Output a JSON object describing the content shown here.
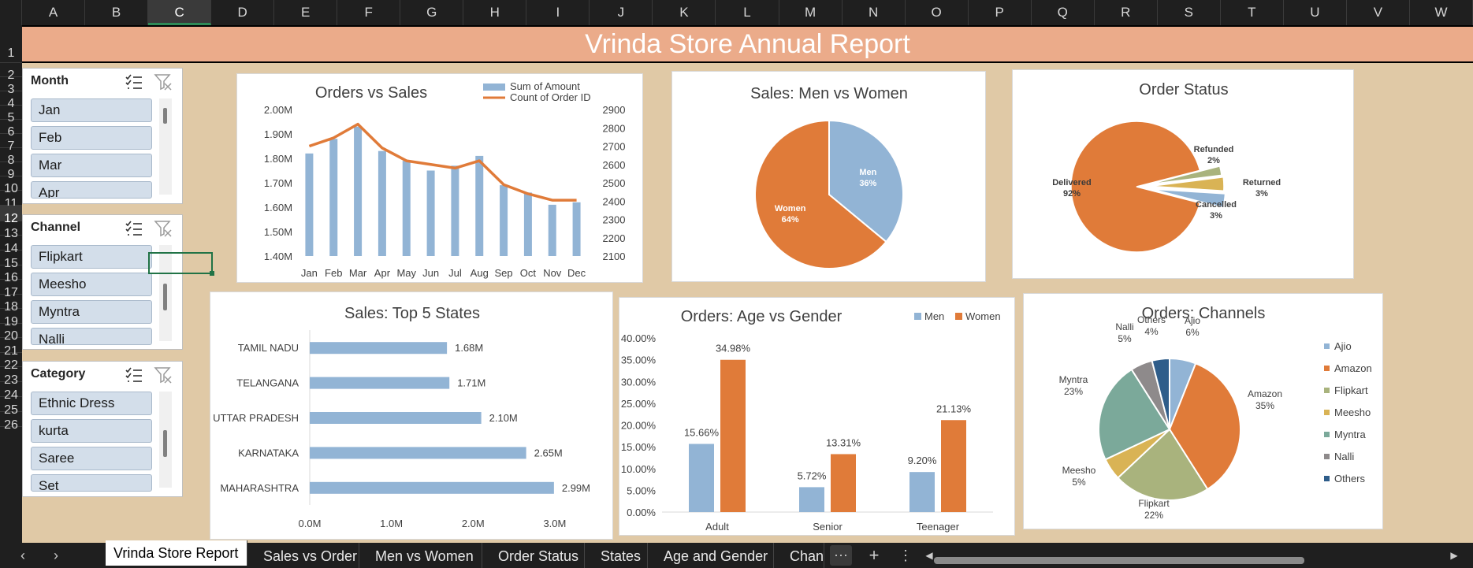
{
  "columns": [
    "A",
    "B",
    "C",
    "D",
    "E",
    "F",
    "G",
    "H",
    "I",
    "J",
    "K",
    "L",
    "M",
    "N",
    "O",
    "P",
    "Q",
    "R",
    "S",
    "T",
    "U",
    "V",
    "W"
  ],
  "selected_column": "C",
  "rows": [
    "1",
    "2",
    "3",
    "4",
    "5",
    "6",
    "7",
    "8",
    "9",
    "10",
    "11",
    "12",
    "13",
    "14",
    "15",
    "16",
    "17",
    "18",
    "19",
    "20",
    "21",
    "22",
    "23",
    "24",
    "25",
    "26"
  ],
  "selected_row": "12",
  "banner_title": "Vrinda Store Annual Report",
  "slicers": [
    {
      "title": "Month",
      "items": [
        "Jan",
        "Feb",
        "Mar",
        "Apr"
      ],
      "scroll_position": 0.05
    },
    {
      "title": "Channel",
      "items": [
        "Flipkart",
        "Meesho",
        "Myntra",
        "Nalli"
      ],
      "scroll_position": 0.35
    },
    {
      "title": "Category",
      "items": [
        "Ethnic Dress",
        "kurta",
        "Saree",
        "Set"
      ],
      "scroll_position": 0.35
    }
  ],
  "icons": {
    "multi_select": "multi-select-icon",
    "clear_filter": "clear-filter-icon",
    "more": "ellipsis-icon",
    "add": "plus-icon",
    "menu": "vertical-ellipsis-icon"
  },
  "colors": {
    "blue": "#92B4D5",
    "orange": "#E07B39",
    "banner": "#EBAB8A",
    "background": "#E0C9A6",
    "olive": "#A9B37D",
    "gold": "#D9B355",
    "teal": "#7BA99A",
    "gray": "#8E8A8B",
    "navy": "#2E5D8A"
  },
  "chart_data": [
    {
      "type": "bar",
      "title": "Orders vs Sales",
      "categories": [
        "Jan",
        "Feb",
        "Mar",
        "Apr",
        "May",
        "Jun",
        "Jul",
        "Aug",
        "Sep",
        "Oct",
        "Nov",
        "Dec"
      ],
      "series": [
        {
          "name": "Sum of Amount",
          "kind": "bar",
          "axis": "left",
          "values": [
            1.82,
            1.88,
            1.93,
            1.83,
            1.79,
            1.75,
            1.77,
            1.81,
            1.69,
            1.66,
            1.61,
            1.62
          ]
        },
        {
          "name": "Count of Order ID",
          "kind": "line",
          "axis": "right",
          "values": [
            2700,
            2745,
            2820,
            2690,
            2620,
            2600,
            2580,
            2620,
            2490,
            2440,
            2405,
            2405
          ]
        }
      ],
      "left_ticks": [
        "2.00M",
        "1.90M",
        "1.80M",
        "1.70M",
        "1.60M",
        "1.50M",
        "1.40M"
      ],
      "right_ticks": [
        "2900",
        "2800",
        "2700",
        "2600",
        "2500",
        "2400",
        "2300",
        "2200",
        "2100"
      ],
      "ylim_left": [
        1.4,
        2.0
      ],
      "ylim_right": [
        2100,
        2900
      ],
      "legend": "top-right"
    },
    {
      "type": "pie",
      "title": "Sales: Men vs Women",
      "slices": [
        {
          "label": "Men",
          "value": 36,
          "text": "36%"
        },
        {
          "label": "Women",
          "value": 64,
          "text": "64%"
        }
      ]
    },
    {
      "type": "pie",
      "title": "Order Status",
      "slices": [
        {
          "label": "Delivered",
          "value": 92,
          "text": "92%"
        },
        {
          "label": "Refunded",
          "value": 2,
          "text": "2%"
        },
        {
          "label": "Returned",
          "value": 3,
          "text": "3%"
        },
        {
          "label": "Cancelled",
          "value": 3,
          "text": "3%"
        }
      ]
    },
    {
      "type": "bar",
      "orientation": "horizontal",
      "title": "Sales: Top 5 States",
      "categories": [
        "TAMIL NADU",
        "TELANGANA",
        "UTTAR PRADESH",
        "KARNATAKA",
        "MAHARASHTRA"
      ],
      "values": [
        1.68,
        1.71,
        2.1,
        2.65,
        2.99
      ],
      "value_labels": [
        "1.68M",
        "1.71M",
        "2.10M",
        "2.65M",
        "2.99M"
      ],
      "x_ticks": [
        "0.0M",
        "1.0M",
        "2.0M",
        "3.0M"
      ],
      "xlim": [
        0,
        3.3
      ]
    },
    {
      "type": "bar",
      "title": "Orders: Age vs Gender",
      "categories": [
        "Adult",
        "Senior",
        "Teenager"
      ],
      "series": [
        {
          "name": "Men",
          "values": [
            15.66,
            5.72,
            9.2
          ],
          "labels": [
            "15.66%",
            "5.72%",
            "9.20%"
          ]
        },
        {
          "name": "Women",
          "values": [
            34.98,
            13.31,
            21.13
          ],
          "labels": [
            "34.98%",
            "13.31%",
            "21.13%"
          ]
        }
      ],
      "y_ticks": [
        "40.00%",
        "35.00%",
        "30.00%",
        "25.00%",
        "20.00%",
        "15.00%",
        "10.00%",
        "5.00%",
        "0.00%"
      ],
      "ylim": [
        0,
        40
      ],
      "legend": "top-right"
    },
    {
      "type": "pie",
      "title": "Orders: Channels",
      "slices": [
        {
          "label": "Ajio",
          "value": 6,
          "text": "6%"
        },
        {
          "label": "Amazon",
          "value": 35,
          "text": "35%"
        },
        {
          "label": "Flipkart",
          "value": 22,
          "text": "22%"
        },
        {
          "label": "Meesho",
          "value": 5,
          "text": "5%"
        },
        {
          "label": "Myntra",
          "value": 23,
          "text": "23%"
        },
        {
          "label": "Nalli",
          "value": 5,
          "text": "5%"
        },
        {
          "label": "Others",
          "value": 4,
          "text": "4%"
        }
      ],
      "legend": "right"
    }
  ],
  "tabs": [
    "Vrinda Store Report",
    "Sales vs Order",
    "Men vs Women",
    "Order Status",
    "States",
    "Age and Gender",
    "Chanr"
  ],
  "active_tab": "Vrinda Store Report"
}
